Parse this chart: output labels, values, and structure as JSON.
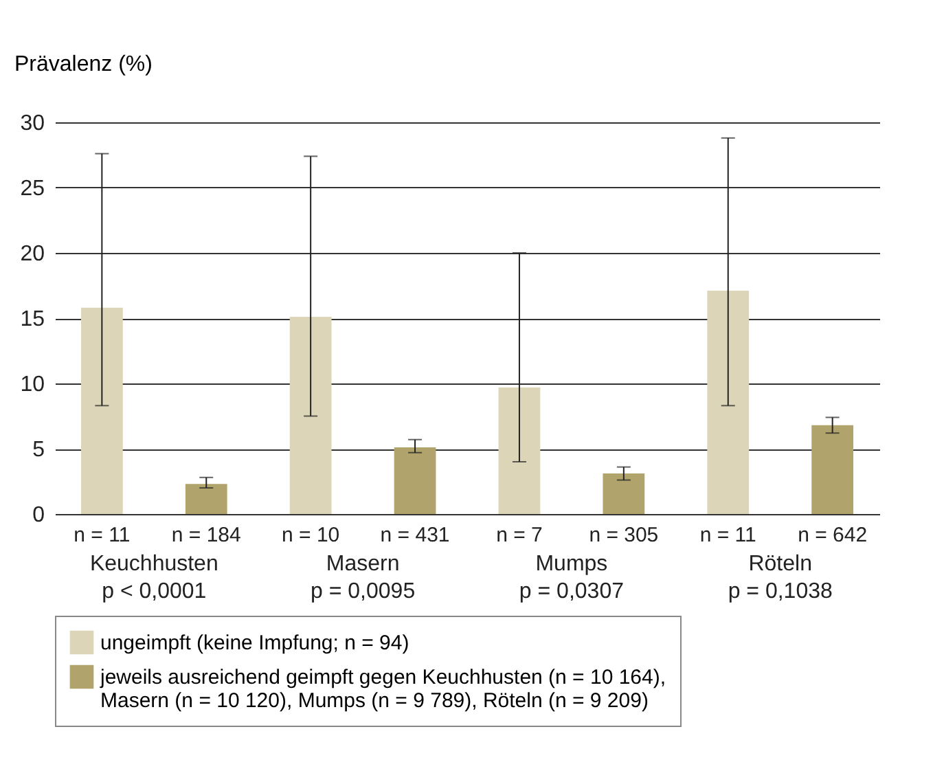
{
  "chart_data": {
    "type": "bar",
    "ylabel": "Prävalenz (%)",
    "categories": [
      "Keuchhusten",
      "Masern",
      "Mumps",
      "Röteln"
    ],
    "series": [
      {
        "name": "ungeimpft (keine Impfung; n = 94)",
        "color": "#ddd5b8",
        "values": [
          15.8,
          15.1,
          9.7,
          17.1
        ],
        "errors": [
          [
            8.3,
            27.6
          ],
          [
            7.5,
            27.4
          ],
          [
            4.0,
            20.0
          ],
          [
            8.3,
            28.8
          ]
        ]
      },
      {
        "name": "jeweils ausreichend geimpft gegen Keuchhusten (n = 10 164), Masern (n = 10 120), Mumps (n = 9 789), Röteln (n = 9 209)",
        "color": "#b0a46c",
        "values": [
          2.3,
          5.1,
          3.1,
          6.8
        ],
        "errors": [
          [
            2.0,
            2.8
          ],
          [
            4.7,
            5.7
          ],
          [
            2.6,
            3.6
          ],
          [
            6.2,
            7.4
          ]
        ]
      }
    ],
    "ylim": [
      0,
      30
    ],
    "yticks": [
      0,
      5,
      10,
      15,
      20,
      25,
      30
    ],
    "grid": "y",
    "legend": "bottom",
    "annotations": [
      "n = 11",
      "n = 184",
      "n = 10",
      "n = 431",
      "n = 7",
      "n = 305",
      "n = 11",
      "n = 642",
      "p < 0,0001",
      "p = 0,0095",
      "p = 0,0307",
      "p = 0,1038"
    ]
  }
}
